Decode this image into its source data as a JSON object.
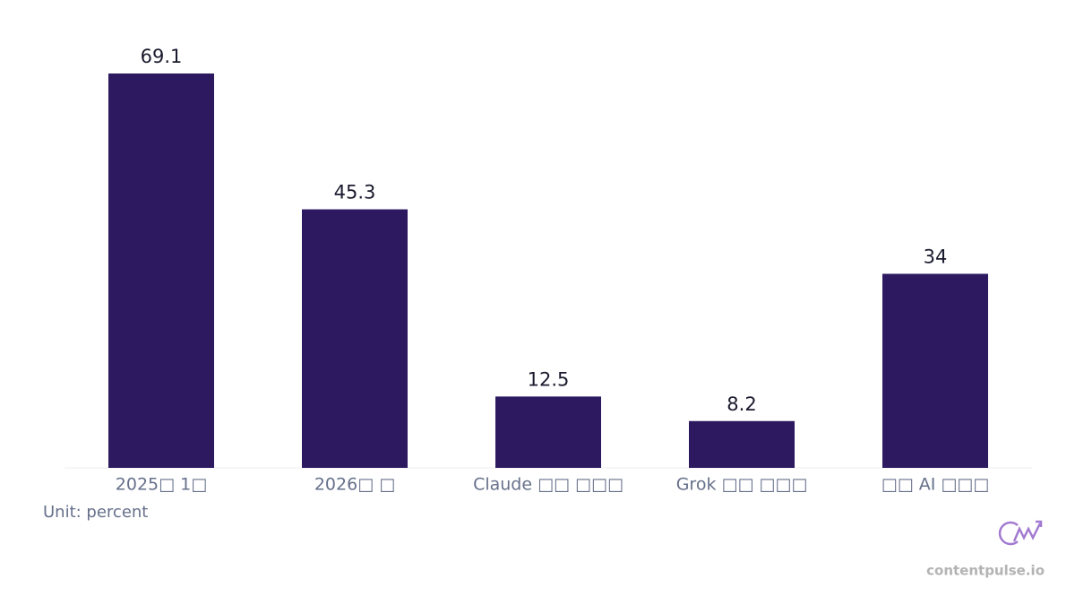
{
  "chart_data": {
    "type": "bar",
    "categories": [
      "2025□ 1□",
      "2026□ □",
      "Claude □□ □□□",
      "Grok □□ □□□",
      "□□ AI □□□"
    ],
    "values": [
      69.1,
      45.3,
      12.5,
      8.2,
      34
    ],
    "color": "#2d1960",
    "unit_note": "Unit: percent",
    "watermark": "contentpulse.io"
  }
}
